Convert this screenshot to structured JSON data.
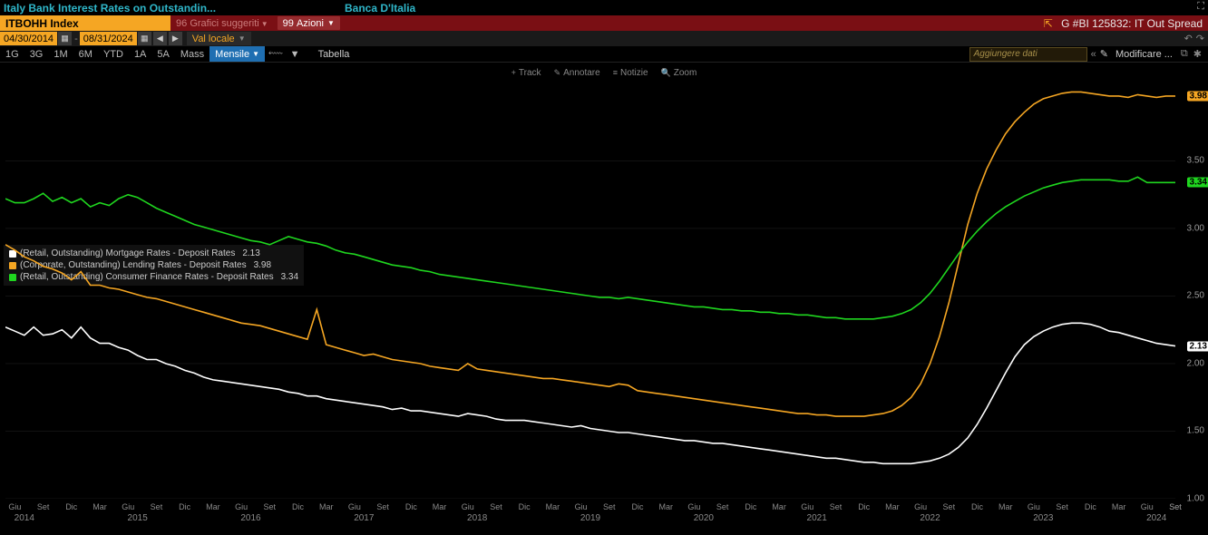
{
  "background": "#000000",
  "header": {
    "title": "Italy Bank Interest Rates on Outstandin...",
    "source": "Banca D'Italia",
    "title_color": "#2fb6c9"
  },
  "redbar": {
    "ticker": "ITBOHH Index",
    "ticker_bg": "#f5a623",
    "suggest_badge": "96",
    "suggest_label": "Grafici suggeriti",
    "azioni_badge": "99",
    "azioni_label": "Azioni",
    "ref_text": "G #BI 125832: IT Out Spread",
    "popout_glyph": "⇱"
  },
  "greybar": {
    "date_from": "04/30/2014",
    "date_to": "08/31/2024",
    "local": "Val locale"
  },
  "rangebar": {
    "buttons": [
      "1G",
      "3G",
      "1M",
      "6M",
      "YTD",
      "1A",
      "5A",
      "Mass"
    ],
    "active": "Mensile",
    "tabella": "Tabella",
    "add_placeholder": "Aggiungere dati",
    "modify": "Modificare ..."
  },
  "tools": {
    "items": [
      {
        "glyph": "+",
        "label": "Track"
      },
      {
        "glyph": "✎",
        "label": "Annotare"
      },
      {
        "glyph": "≡",
        "label": "Notizie"
      },
      {
        "glyph": "🔍",
        "label": "Zoom"
      }
    ]
  },
  "legend": {
    "rows": [
      {
        "color": "#ffffff",
        "label": "(Retail, Outstanding) Mortgage Rates - Deposit Rates",
        "value": "2.13"
      },
      {
        "color": "#f5a623",
        "label": "(Corporate, Outstanding) Lending Rates - Deposit Rates",
        "value": "3.98"
      },
      {
        "color": "#1fd61f",
        "label": "(Retail, Outstanding) Consumer Finance Rates - Deposit Rates",
        "value": "3.34"
      }
    ]
  },
  "chart": {
    "type": "line",
    "background": "#000000",
    "grid_color": "#262626",
    "ylim": [
      1.0,
      4.1
    ],
    "yticks": [
      1.0,
      1.5,
      2.0,
      2.5,
      3.0,
      3.5
    ],
    "years": [
      2014,
      2015,
      2016,
      2017,
      2018,
      2019,
      2020,
      2021,
      2022,
      2023,
      2024
    ],
    "months": [
      "Giu",
      "Set",
      "Dic",
      "Mar"
    ],
    "n_points": 125,
    "series": [
      {
        "name": "white",
        "color": "#ffffff",
        "last": 2.13,
        "badge_bg": "#ffffff",
        "data": [
          2.27,
          2.24,
          2.21,
          2.27,
          2.21,
          2.22,
          2.25,
          2.19,
          2.27,
          2.19,
          2.15,
          2.15,
          2.12,
          2.1,
          2.06,
          2.03,
          2.03,
          2.0,
          1.98,
          1.95,
          1.93,
          1.9,
          1.88,
          1.87,
          1.86,
          1.85,
          1.84,
          1.83,
          1.82,
          1.81,
          1.79,
          1.78,
          1.76,
          1.76,
          1.74,
          1.73,
          1.72,
          1.71,
          1.7,
          1.69,
          1.68,
          1.66,
          1.67,
          1.65,
          1.65,
          1.64,
          1.63,
          1.62,
          1.61,
          1.63,
          1.62,
          1.61,
          1.59,
          1.58,
          1.58,
          1.58,
          1.57,
          1.56,
          1.55,
          1.54,
          1.53,
          1.54,
          1.52,
          1.51,
          1.5,
          1.49,
          1.49,
          1.48,
          1.47,
          1.46,
          1.45,
          1.44,
          1.43,
          1.43,
          1.42,
          1.41,
          1.41,
          1.4,
          1.39,
          1.38,
          1.37,
          1.36,
          1.35,
          1.34,
          1.33,
          1.32,
          1.31,
          1.3,
          1.3,
          1.29,
          1.28,
          1.27,
          1.27,
          1.26,
          1.26,
          1.26,
          1.26,
          1.27,
          1.28,
          1.3,
          1.33,
          1.38,
          1.45,
          1.55,
          1.67,
          1.8,
          1.93,
          2.05,
          2.14,
          2.2,
          2.24,
          2.27,
          2.29,
          2.3,
          2.3,
          2.29,
          2.27,
          2.24,
          2.23,
          2.21,
          2.19,
          2.17,
          2.15,
          2.14,
          2.13
        ]
      },
      {
        "name": "orange",
        "color": "#f5a623",
        "last": 3.98,
        "badge_bg": "#f5a623",
        "data": [
          2.88,
          2.84,
          2.79,
          2.76,
          2.72,
          2.7,
          2.67,
          2.62,
          2.68,
          2.58,
          2.58,
          2.56,
          2.55,
          2.53,
          2.51,
          2.49,
          2.48,
          2.46,
          2.44,
          2.42,
          2.4,
          2.38,
          2.36,
          2.34,
          2.32,
          2.3,
          2.29,
          2.28,
          2.26,
          2.24,
          2.22,
          2.2,
          2.18,
          2.4,
          2.14,
          2.12,
          2.1,
          2.08,
          2.06,
          2.07,
          2.05,
          2.03,
          2.02,
          2.01,
          2.0,
          1.98,
          1.97,
          1.96,
          1.95,
          2.0,
          1.96,
          1.95,
          1.94,
          1.93,
          1.92,
          1.91,
          1.9,
          1.89,
          1.89,
          1.88,
          1.87,
          1.86,
          1.85,
          1.84,
          1.83,
          1.85,
          1.84,
          1.8,
          1.79,
          1.78,
          1.77,
          1.76,
          1.75,
          1.74,
          1.73,
          1.72,
          1.71,
          1.7,
          1.69,
          1.68,
          1.67,
          1.66,
          1.65,
          1.64,
          1.63,
          1.63,
          1.62,
          1.62,
          1.61,
          1.61,
          1.61,
          1.61,
          1.62,
          1.63,
          1.65,
          1.69,
          1.75,
          1.85,
          2.0,
          2.2,
          2.45,
          2.74,
          3.03,
          3.26,
          3.44,
          3.58,
          3.7,
          3.79,
          3.86,
          3.92,
          3.96,
          3.98,
          4.0,
          4.01,
          4.01,
          4.0,
          3.99,
          3.98,
          3.98,
          3.97,
          3.99,
          3.98,
          3.97,
          3.98,
          3.98
        ]
      },
      {
        "name": "green",
        "color": "#1fd61f",
        "last": 3.34,
        "badge_bg": "#1fd61f",
        "data": [
          3.22,
          3.19,
          3.19,
          3.22,
          3.26,
          3.2,
          3.23,
          3.19,
          3.22,
          3.16,
          3.19,
          3.17,
          3.22,
          3.25,
          3.23,
          3.19,
          3.15,
          3.12,
          3.09,
          3.06,
          3.03,
          3.01,
          2.99,
          2.97,
          2.95,
          2.93,
          2.91,
          2.9,
          2.88,
          2.91,
          2.94,
          2.92,
          2.9,
          2.89,
          2.87,
          2.84,
          2.82,
          2.81,
          2.79,
          2.77,
          2.75,
          2.73,
          2.72,
          2.71,
          2.69,
          2.68,
          2.66,
          2.65,
          2.64,
          2.63,
          2.62,
          2.61,
          2.6,
          2.59,
          2.58,
          2.57,
          2.56,
          2.55,
          2.54,
          2.53,
          2.52,
          2.51,
          2.5,
          2.49,
          2.49,
          2.48,
          2.49,
          2.48,
          2.47,
          2.46,
          2.45,
          2.44,
          2.43,
          2.42,
          2.42,
          2.41,
          2.4,
          2.4,
          2.39,
          2.39,
          2.38,
          2.38,
          2.37,
          2.37,
          2.36,
          2.36,
          2.35,
          2.34,
          2.34,
          2.33,
          2.33,
          2.33,
          2.33,
          2.34,
          2.35,
          2.37,
          2.4,
          2.45,
          2.52,
          2.61,
          2.71,
          2.81,
          2.9,
          2.98,
          3.05,
          3.11,
          3.16,
          3.2,
          3.24,
          3.27,
          3.3,
          3.32,
          3.34,
          3.35,
          3.36,
          3.36,
          3.36,
          3.36,
          3.35,
          3.35,
          3.38,
          3.34,
          3.34,
          3.34,
          3.34
        ]
      }
    ]
  }
}
